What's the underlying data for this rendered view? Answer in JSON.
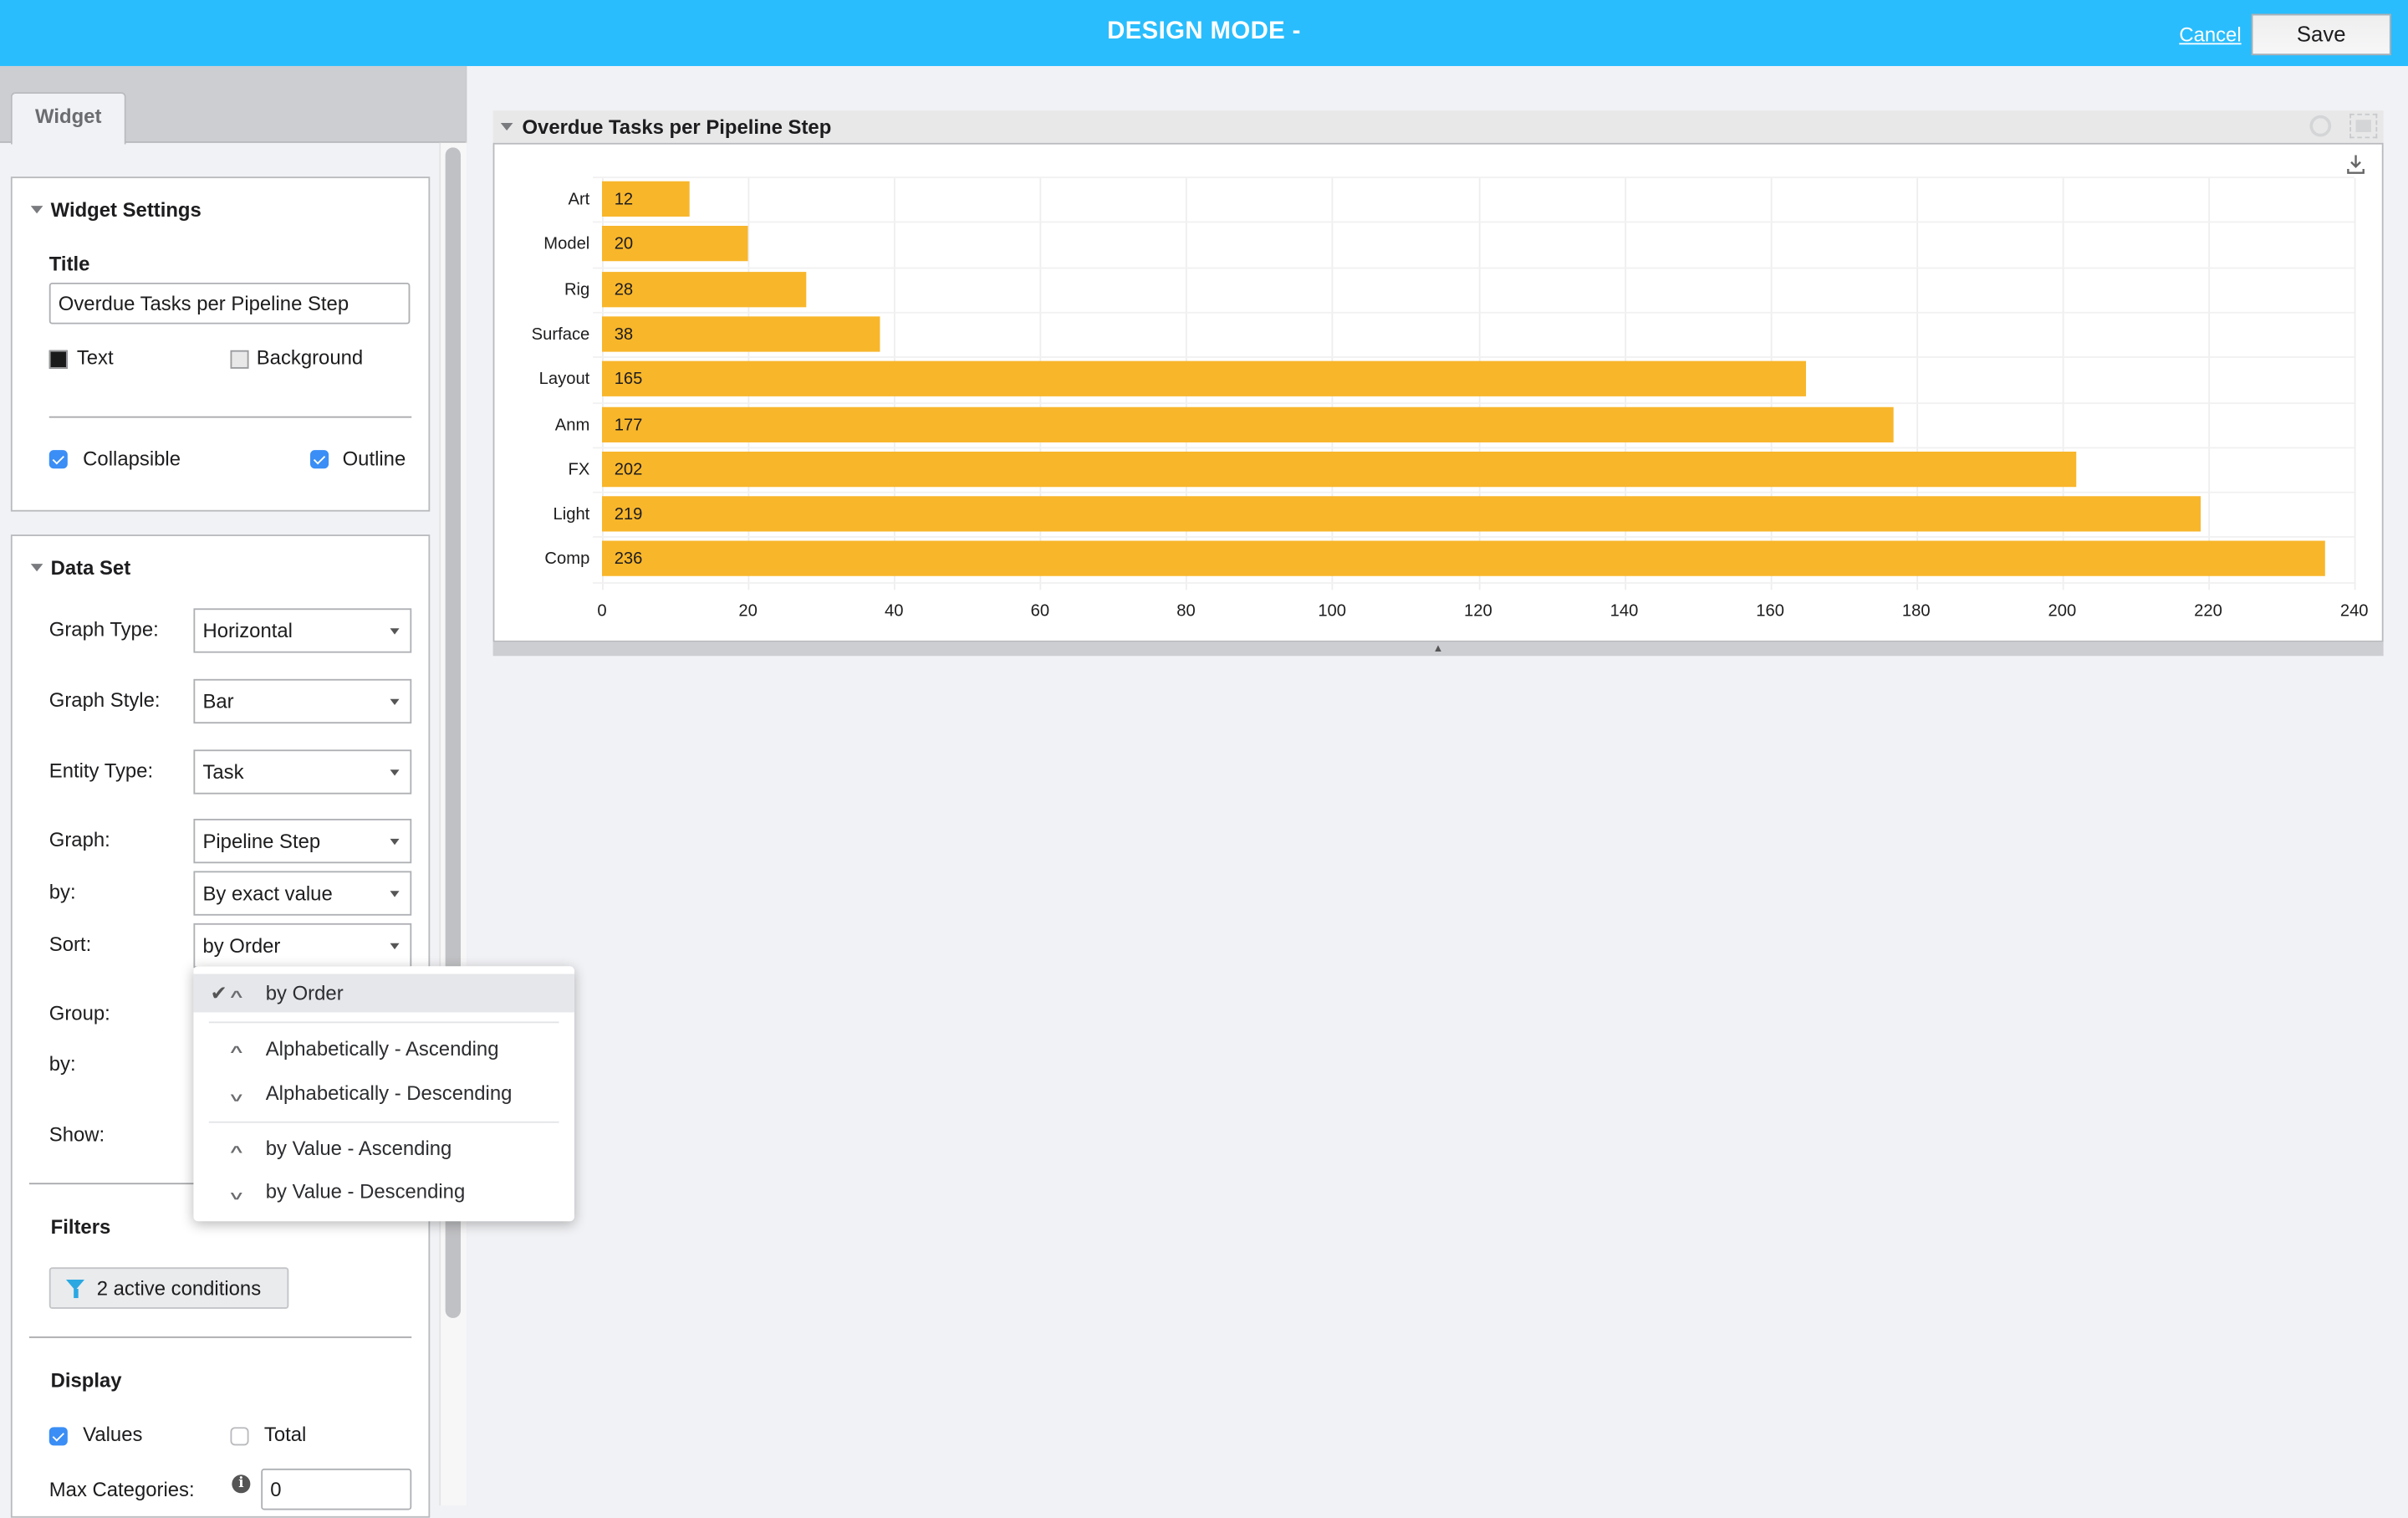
{
  "header": {
    "title": "DESIGN MODE -",
    "cancel_label": "Cancel",
    "save_label": "Save",
    "bg_color": "#29bdfd"
  },
  "left_panel": {
    "tab_label": "Widget",
    "widget_settings": {
      "heading": "Widget Settings",
      "title_label": "Title",
      "title_value": "Overdue Tasks per Pipeline Step",
      "text_color_label": "Text",
      "text_color": "#1a1a1a",
      "background_color_label": "Background",
      "background_color": "#e8e8e9",
      "collapsible_label": "Collapsible",
      "collapsible_checked": true,
      "outline_label": "Outline",
      "outline_checked": true
    },
    "data_set": {
      "heading": "Data Set",
      "graph_type_label": "Graph Type:",
      "graph_type_value": "Horizontal",
      "graph_style_label": "Graph Style:",
      "graph_style_value": "Bar",
      "entity_type_label": "Entity Type:",
      "entity_type_value": "Task",
      "graph_label": "Graph:",
      "graph_value": "Pipeline Step",
      "by_label": "by:",
      "by_value": "By exact value",
      "sort_label": "Sort:",
      "sort_value": "by Order",
      "group_label": "Group:",
      "group_by_label": "by:",
      "show_label": "Show:",
      "filters_heading": "Filters",
      "filters_button": "2 active conditions",
      "display_heading": "Display",
      "values_label": "Values",
      "values_checked": true,
      "total_label": "Total",
      "total_checked": false,
      "max_categories_label": "Max Categories:",
      "max_categories_value": "0"
    },
    "sort_menu": {
      "items": [
        {
          "label": "by Order",
          "icon": "chevron-up",
          "selected": true
        },
        {
          "label": "Alphabetically - Ascending",
          "icon": "chevron-up",
          "selected": false
        },
        {
          "label": "Alphabetically - Descending",
          "icon": "chevron-down",
          "selected": false
        },
        {
          "label": "by Value - Ascending",
          "icon": "chevron-up",
          "selected": false
        },
        {
          "label": "by Value - Descending",
          "icon": "chevron-down",
          "selected": false
        }
      ]
    }
  },
  "chart_widget": {
    "title": "Overdue Tasks per Pipeline Step"
  },
  "chart_data": {
    "type": "bar",
    "orientation": "horizontal",
    "title": "Overdue Tasks per Pipeline Step",
    "categories": [
      "Art",
      "Model",
      "Rig",
      "Surface",
      "Layout",
      "Anm",
      "FX",
      "Light",
      "Comp"
    ],
    "values": [
      12,
      20,
      28,
      38,
      165,
      177,
      202,
      219,
      236
    ],
    "xlabel": "",
    "ylabel": "",
    "xlim": [
      0,
      240
    ],
    "x_ticks": [
      "0",
      "20",
      "40",
      "60",
      "80",
      "100",
      "120",
      "140",
      "160",
      "180",
      "200",
      "220",
      "240"
    ],
    "grid": true,
    "data_labels": true,
    "bar_color": "#f8b62b",
    "legend": null
  }
}
